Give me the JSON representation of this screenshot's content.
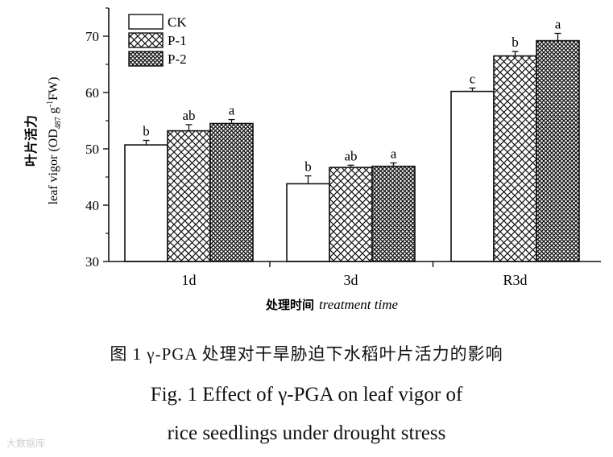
{
  "chart_data": {
    "type": "bar",
    "categories": [
      "1d",
      "3d",
      "R3d"
    ],
    "series": [
      {
        "name": "CK",
        "values": [
          50.7,
          43.8,
          60.2
        ],
        "errors": [
          0.8,
          1.4,
          0.6
        ],
        "letters": [
          "b",
          "b",
          "c"
        ],
        "pattern": "none"
      },
      {
        "name": "P-1",
        "values": [
          53.2,
          46.7,
          66.5
        ],
        "errors": [
          1.1,
          0.4,
          0.8
        ],
        "letters": [
          "ab",
          "ab",
          "b"
        ],
        "pattern": "crosshatch"
      },
      {
        "name": "P-2",
        "values": [
          54.5,
          46.9,
          69.2
        ],
        "errors": [
          0.7,
          0.6,
          1.3
        ],
        "letters": [
          "a",
          "a",
          "a"
        ],
        "pattern": "dense-crosshatch"
      }
    ],
    "ylim": [
      30,
      75
    ],
    "yticks": [
      30,
      40,
      50,
      60,
      70
    ],
    "ylabel_cn": "叶片活力",
    "ylabel_en": "leaf vigor (OD",
    "ylabel_sub": "487",
    "ylabel_en_unit": " g",
    "ylabel_sup": "-1",
    "ylabel_en_tail": "FW)",
    "xlabel_cn": "处理时间",
    "xlabel_en": "treatment time",
    "legend_position": "top-left",
    "grid": false
  },
  "caption": {
    "cn": "图 1   γ-PGA 处理对干旱胁迫下水稻叶片活力的影响",
    "en_line1": "Fig. 1    Effect of γ-PGA on leaf vigor of",
    "en_line2": "rice seedlings under drought stress"
  },
  "watermark": "大数据库"
}
